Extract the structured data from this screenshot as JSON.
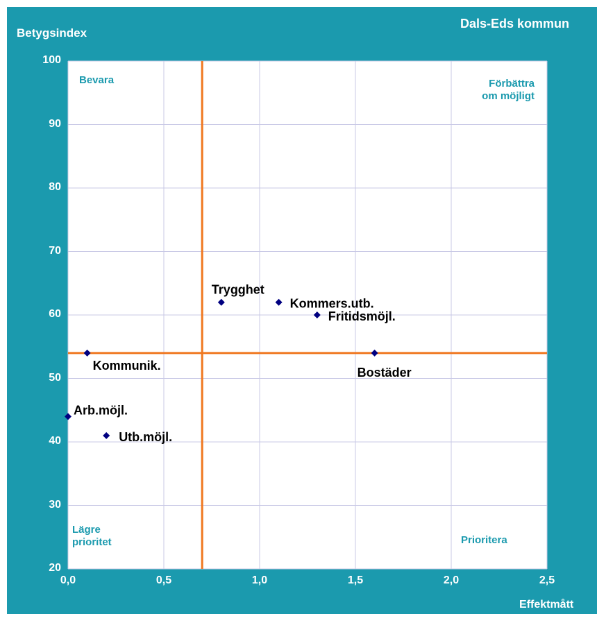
{
  "chart_data": {
    "type": "scatter",
    "title": "Dals-Eds kommun",
    "xlabel": "Effektmått",
    "ylabel": "Betygsindex",
    "xlim": [
      0,
      2.5
    ],
    "ylim": [
      20,
      100
    ],
    "x_ticks": [
      "0,0",
      "0,5",
      "1,0",
      "1,5",
      "2,0",
      "2,5"
    ],
    "y_ticks": [
      "20",
      "30",
      "40",
      "50",
      "60",
      "70",
      "80",
      "90",
      "100"
    ],
    "grid": true,
    "reference_lines": {
      "x": 0.7,
      "y": 54
    },
    "quadrants": {
      "top_left": "Bevara",
      "top_right": [
        "Förbättra",
        "om möjligt"
      ],
      "bottom_left": [
        "Lägre",
        "prioritet"
      ],
      "bottom_right": "Prioritera"
    },
    "points": [
      {
        "label": "Trygghet",
        "x": 0.8,
        "y": 62
      },
      {
        "label": "Kommers.utb.",
        "x": 1.1,
        "y": 62
      },
      {
        "label": "Fritidsmöjl.",
        "x": 1.3,
        "y": 60
      },
      {
        "label": "Kommunik.",
        "x": 0.1,
        "y": 54
      },
      {
        "label": "Bostäder",
        "x": 1.6,
        "y": 54
      },
      {
        "label": "Arb.möjl.",
        "x": 0.0,
        "y": 44
      },
      {
        "label": "Utb.möjl.",
        "x": 0.2,
        "y": 41
      }
    ],
    "colors": {
      "background": "#1b9aae",
      "marker": "#000080",
      "reference": "#f07820",
      "grid": "#c9c9e6"
    }
  }
}
